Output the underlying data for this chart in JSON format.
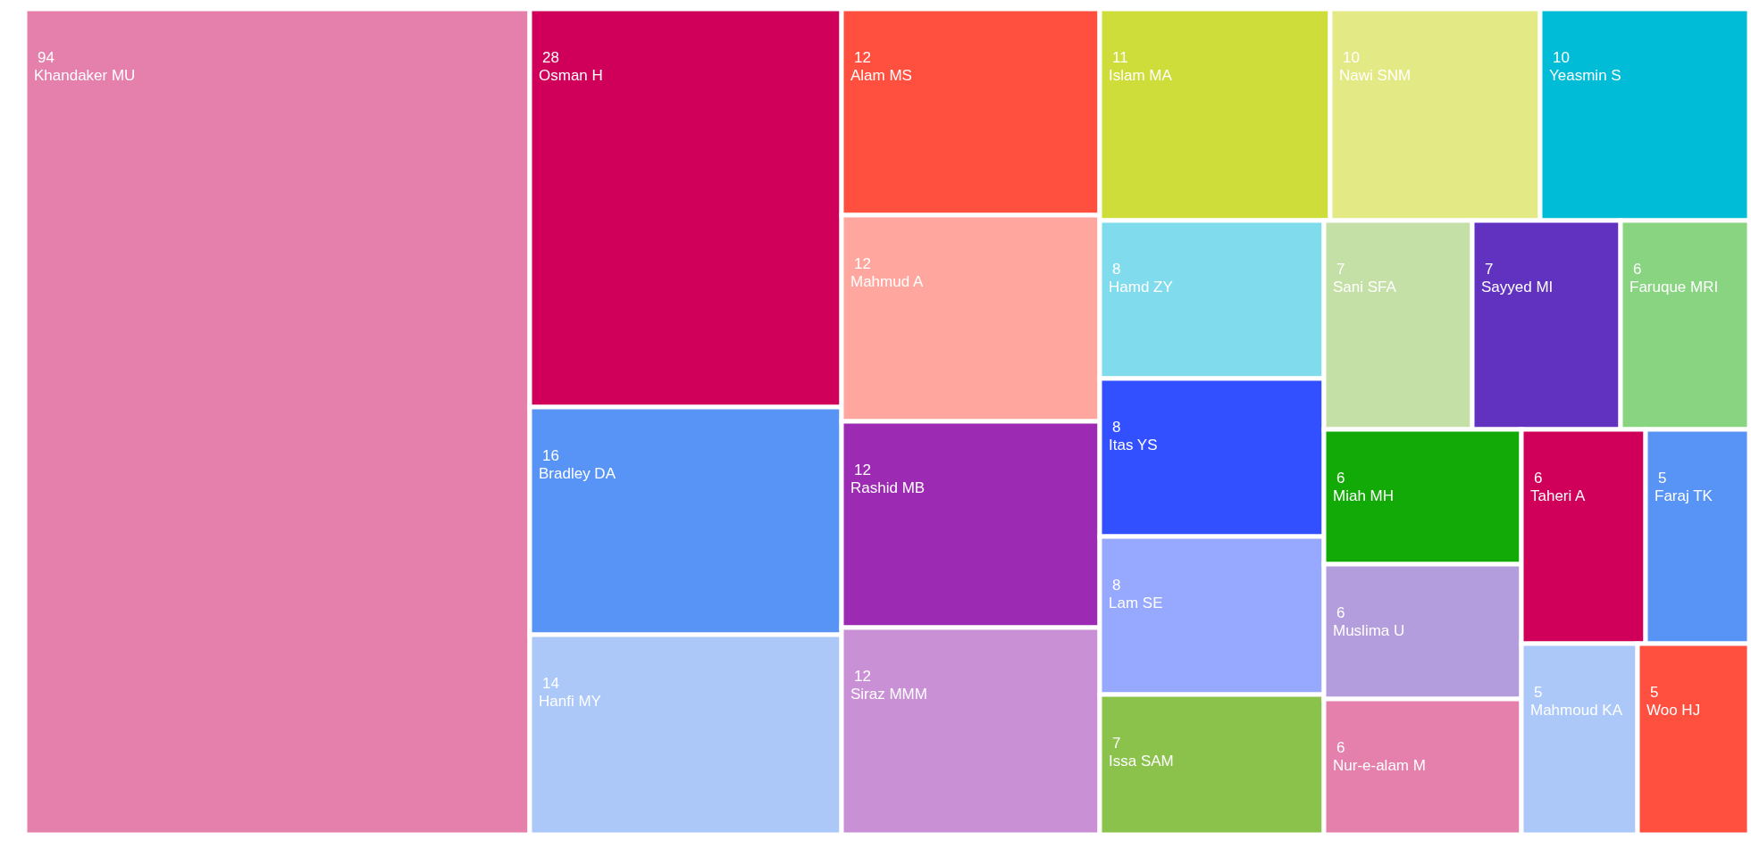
{
  "chart_data": {
    "type": "other",
    "data_labels": true,
    "categories": [
      "Khandaker MU",
      "Osman H",
      "Bradley DA",
      "Hanfi MY",
      "Alam MS",
      "Mahmud A",
      "Rashid MB",
      "Siraz MMM",
      "Islam MA",
      "Nawi SNM",
      "Yeasmin S",
      "Hamd ZY",
      "Itas YS",
      "Lam SE",
      "Issa SAM",
      "Sani SFA",
      "Sayyed MI",
      "Faruque MRI",
      "Miah MH",
      "Muslima U",
      "Nur-e-alam M",
      "Taheri A",
      "Faraj TK",
      "Mahmoud KA",
      "Woo HJ"
    ],
    "values": [
      94,
      28,
      16,
      14,
      12,
      12,
      12,
      12,
      11,
      10,
      10,
      8,
      8,
      8,
      7,
      7,
      7,
      6,
      6,
      6,
      6,
      6,
      5,
      5,
      5
    ],
    "colors": [
      "#e57fab",
      "#d0005a",
      "#5894f5",
      "#abc8f8",
      "#ff4f3f",
      "#ffa79f",
      "#9c2ab3",
      "#c990d6",
      "#cedd3a",
      "#e2e985",
      "#00bcd6",
      "#80dcec",
      "#3250ff",
      "#97a8ff",
      "#8bc24c",
      "#c5e0a6",
      "#6132c0",
      "#88d480",
      "#12aa06",
      "#b39ddc",
      "#e57fab",
      "#d0005a",
      "#5894f5",
      "#abc8f8",
      "#ff4f3f"
    ]
  }
}
